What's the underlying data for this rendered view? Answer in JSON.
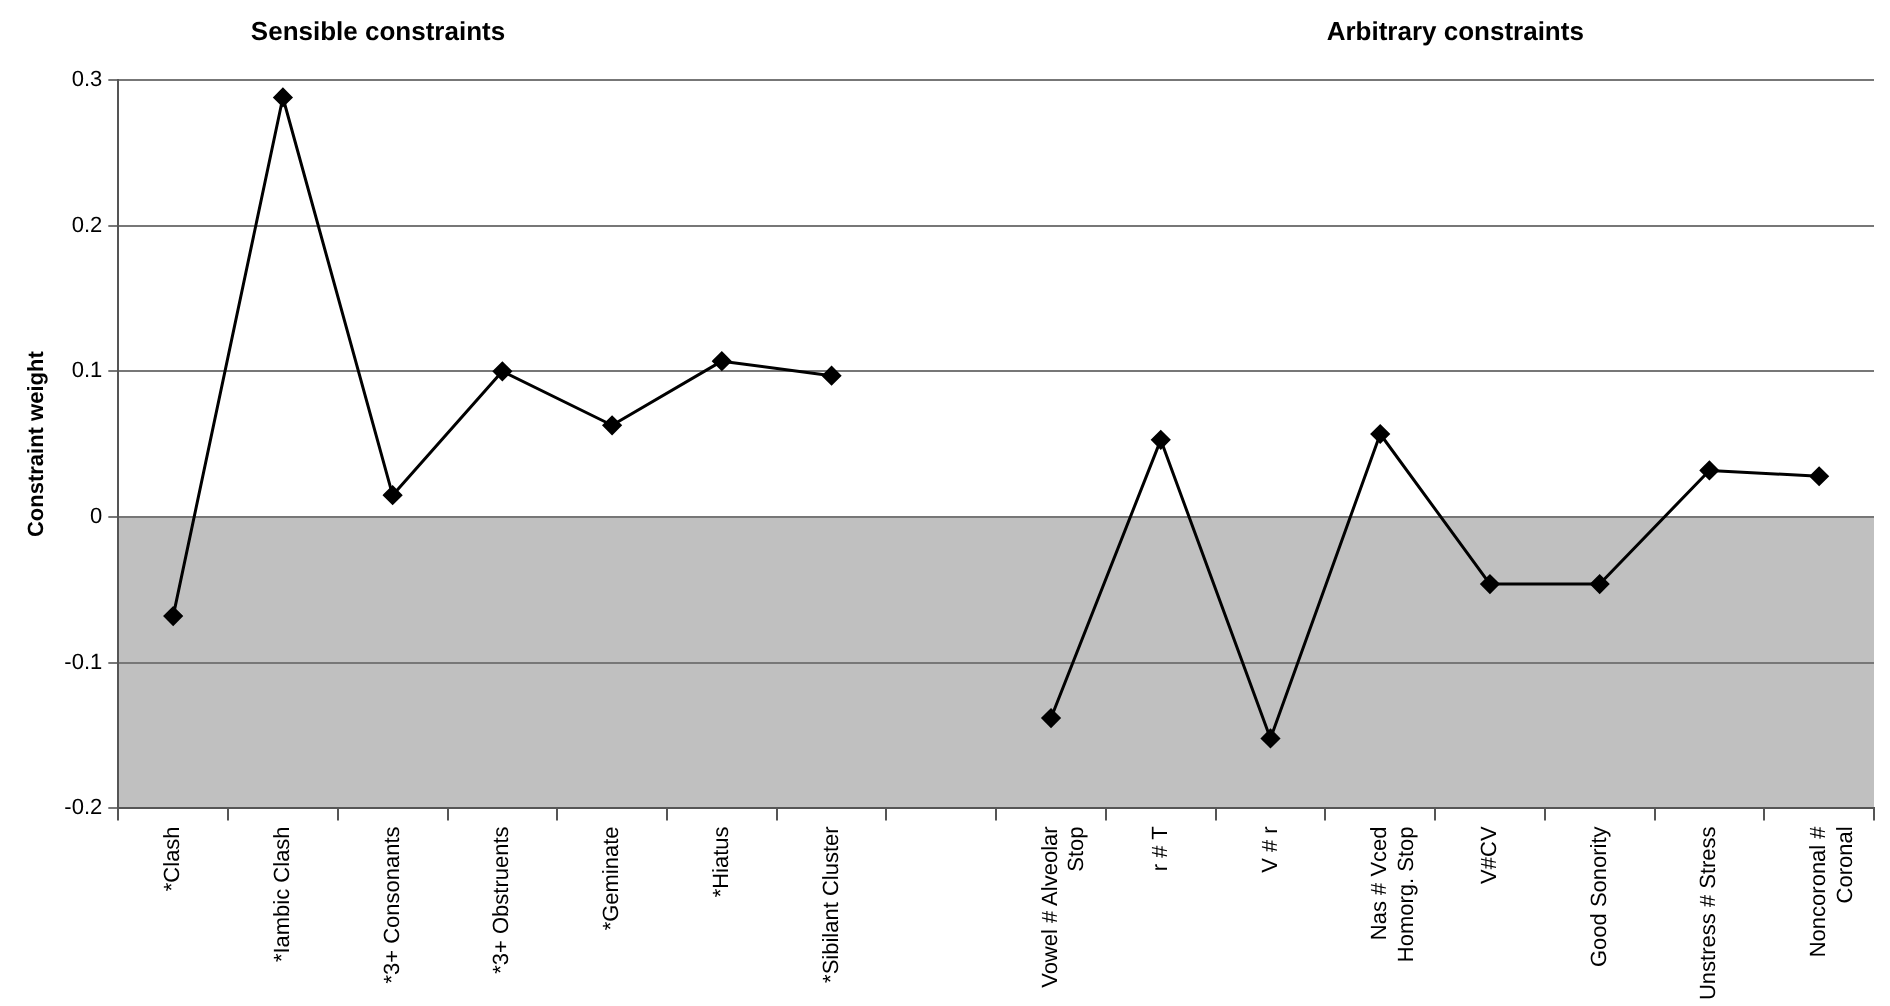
{
  "chart_data": {
    "type": "line",
    "ylabel": "Constraint weight",
    "annotations": [
      "Sensible constraints",
      "Arbitrary constraints"
    ],
    "categories": [
      "*Clash",
      "*Iambic Clash",
      "*3+ Consonants",
      "*3+ Obstruents",
      "*Geminate",
      "*Hiatus",
      "*Sibilant Cluster",
      null,
      "Vowel # Alveolar Stop",
      "r # T",
      "V # r",
      "Nas # Vced Homorg. Stop",
      "V#CV",
      "Good Sonority",
      "Unstress # Stress",
      "Noncoronal # Coronal"
    ],
    "series": [
      {
        "color": "#000000",
        "values": [
          -0.068,
          0.288,
          0.015,
          0.1,
          0.063,
          0.107,
          0.097,
          null,
          -0.138,
          0.053,
          -0.152,
          0.057,
          -0.046,
          -0.046,
          0.032,
          0.028
        ]
      }
    ],
    "ylim": [
      -0.2,
      0.3
    ],
    "yticks": [
      -0.2,
      -0.1,
      0,
      0.1,
      0.2,
      0.3
    ],
    "bands": [
      {
        "axis": "y",
        "from": -0.2,
        "to": 0,
        "color": "#c0c0c0"
      }
    ],
    "grid": "y",
    "legend": false,
    "marker": "diamond",
    "line_style": "solid"
  }
}
